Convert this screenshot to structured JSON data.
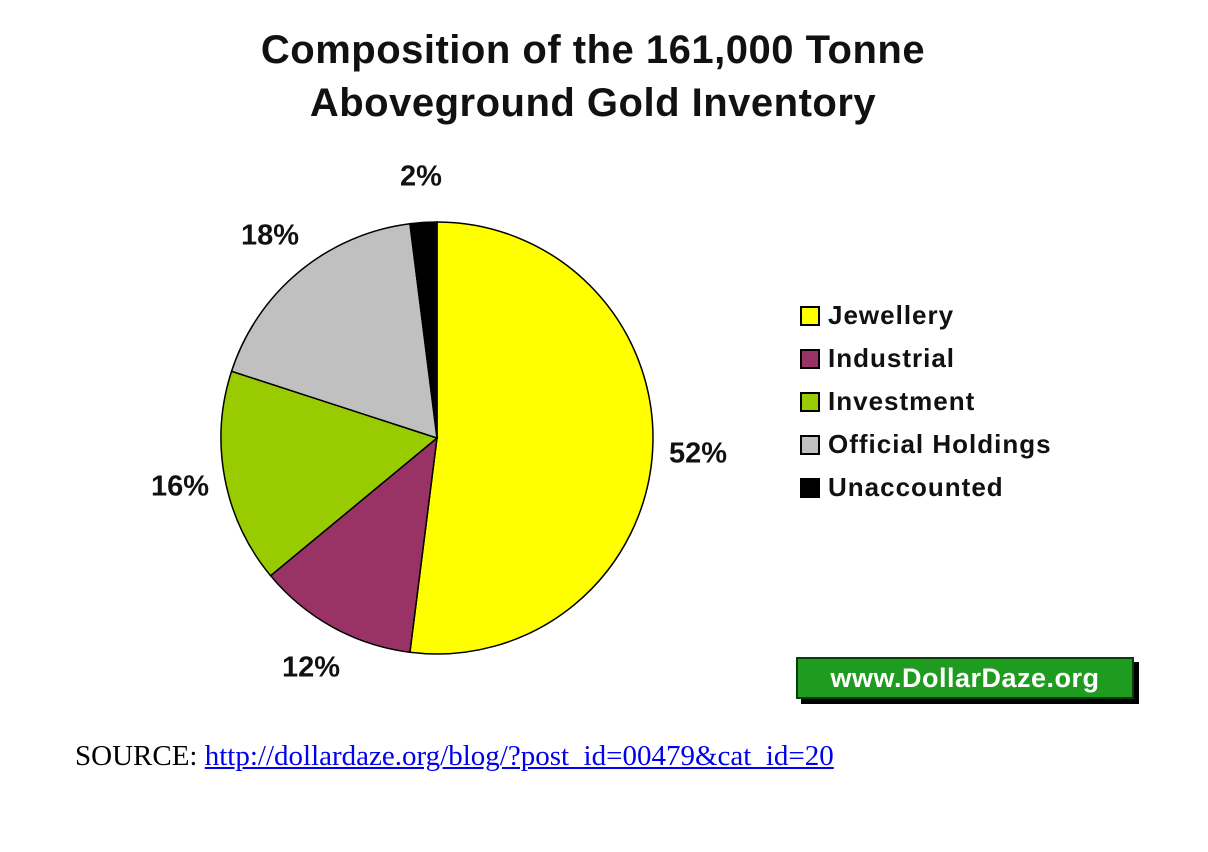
{
  "title_lines": [
    "Composition of the 161,000 Tonne",
    "Aboveground Gold Inventory"
  ],
  "chart_data": {
    "type": "pie",
    "title": "Composition of the 161,000 Tonne Aboveground Gold Inventory",
    "categories": [
      "Jewellery",
      "Industrial",
      "Investment",
      "Official Holdings",
      "Unaccounted"
    ],
    "values": [
      52,
      12,
      16,
      18,
      2
    ],
    "unit": "%",
    "slice_labels": [
      "52%",
      "12%",
      "16%",
      "18%",
      "2%"
    ],
    "colors": [
      "#FFFF00",
      "#993366",
      "#99CC00",
      "#C0C0C0",
      "#000000"
    ],
    "start_angle_deg_from_top": 0,
    "direction": "clockwise",
    "legend_position": "right",
    "grid": false
  },
  "badge": {
    "text": "www.DollarDaze.org",
    "bg_color": "#1f9b1f"
  },
  "source": {
    "label": "SOURCE: ",
    "link_text": "http://dollardaze.org/blog/?post_id=00479&cat_id=20",
    "link_color": "#0000EE"
  }
}
